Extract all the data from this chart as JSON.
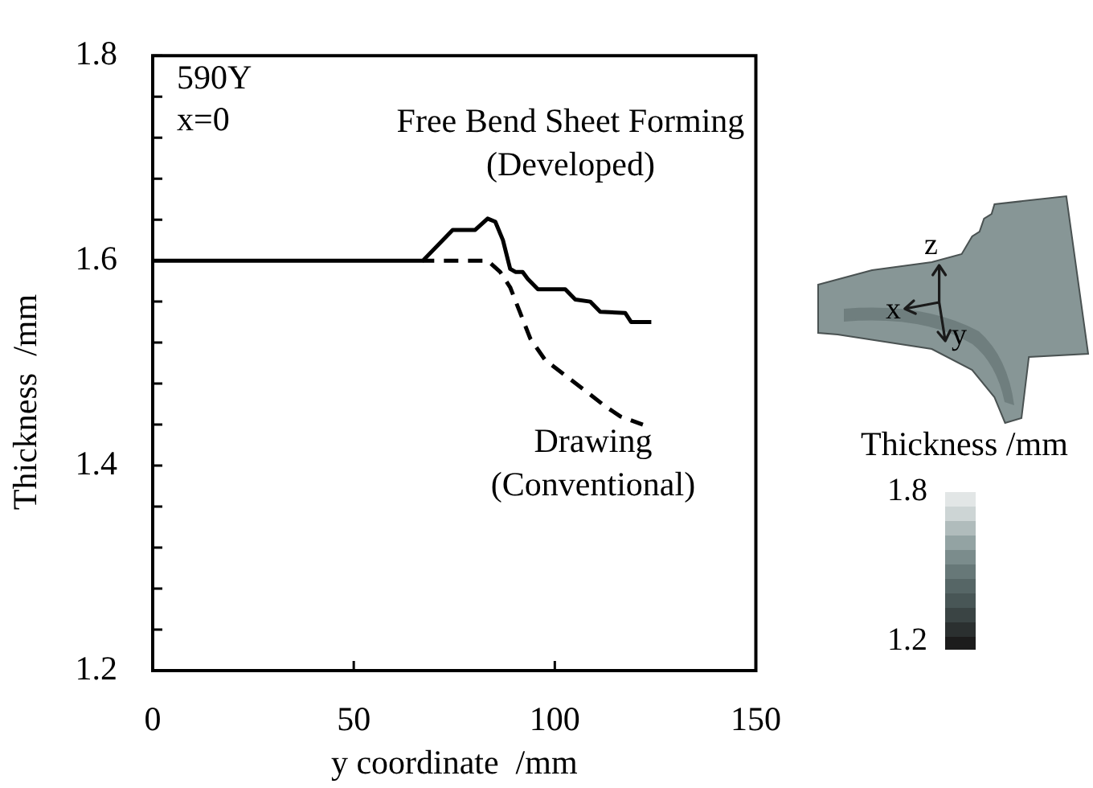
{
  "chart_data": [
    {
      "type": "line",
      "xlabel": "y coordinate  /mm",
      "ylabel": "Thickness  /mm",
      "annotations": [
        "590Y",
        "x=0"
      ],
      "xlim": [
        0,
        150
      ],
      "xticks": [
        0,
        50,
        100,
        150
      ],
      "ylim": [
        1.2,
        1.8
      ],
      "yticks": [
        1.2,
        {
          "value": 1.24,
          "label": null
        },
        {
          "value": 1.28,
          "label": null
        },
        {
          "value": 1.32,
          "label": null
        },
        {
          "value": 1.36,
          "label": null
        },
        1.4,
        {
          "value": 1.44,
          "label": null
        },
        {
          "value": 1.48,
          "label": null
        },
        {
          "value": 1.52,
          "label": null
        },
        {
          "value": 1.56,
          "label": null
        },
        1.6,
        {
          "value": 1.64,
          "label": null
        },
        {
          "value": 1.68,
          "label": null
        },
        {
          "value": 1.72,
          "label": null
        },
        {
          "value": 1.76,
          "label": null
        },
        1.8
      ],
      "series": [
        {
          "name": "Free Bend Sheet Forming (Developed)",
          "color": "#000000",
          "line_style": "solid",
          "x": [
            0,
            67.2,
            74.6,
            80.2,
            83.3,
            85.2,
            87.1,
            88.9,
            90.2,
            92.0,
            93.3,
            95.8,
            102.6,
            105.1,
            108.8,
            111.3,
            117.5,
            119.0,
            124.0
          ],
          "values": [
            1.6,
            1.6,
            1.63,
            1.63,
            1.641,
            1.638,
            1.62,
            1.592,
            1.589,
            1.589,
            1.582,
            1.572,
            1.572,
            1.562,
            1.56,
            1.55,
            1.549,
            1.54,
            1.54
          ]
        },
        {
          "name": "Drawing (Conventional)",
          "color": "#000000",
          "line_style": "dashed",
          "x": [
            67.2,
            83.3,
            86.4,
            88.9,
            91.4,
            93.9,
            97.6,
            102.6,
            107.6,
            112.5,
            116.3,
            121.9
          ],
          "values": [
            1.6,
            1.6,
            1.589,
            1.574,
            1.549,
            1.524,
            1.503,
            1.488,
            1.473,
            1.458,
            1.448,
            1.44
          ]
        }
      ]
    },
    {
      "type": "other",
      "clabel": "Thickness /mm",
      "colors": [
        "#1c1c1c",
        "#2b3030",
        "#3a4444",
        "#485656",
        "#566666",
        "#677878",
        "#7b8c8c",
        "#93a3a3",
        "#b0bcbc",
        "#cdd5d5",
        "#e2e6e6"
      ],
      "annotations": [
        "z",
        "x",
        "y",
        "1.8",
        "1.2"
      ]
    }
  ]
}
